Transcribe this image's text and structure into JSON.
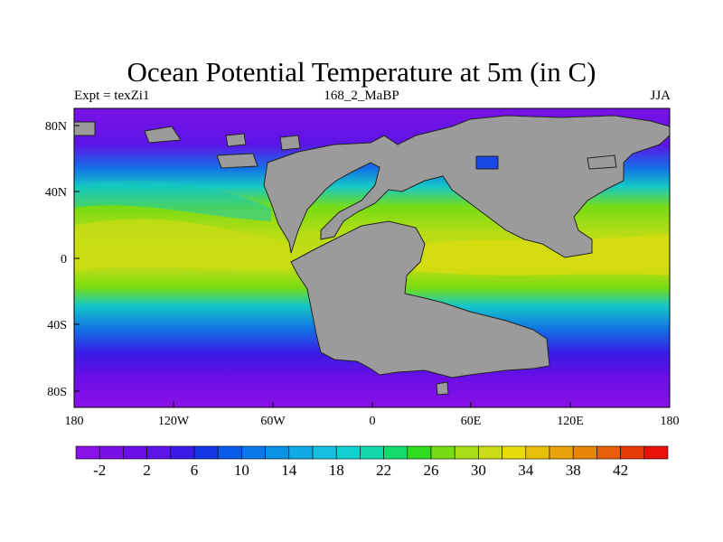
{
  "title": "Ocean Potential Temperature at 5m (in C)",
  "subtitle_left": "Expt = texZi1",
  "subtitle_center": "168_2_MaBP",
  "subtitle_right": "JJA",
  "lon_labels": [
    "180",
    "120W",
    "60W",
    "0",
    "60E",
    "120E",
    "180"
  ],
  "lat_labels": [
    "80N",
    "40N",
    "0",
    "40S",
    "80S"
  ],
  "colorbar": {
    "labels": [
      "-2",
      "2",
      "6",
      "10",
      "14",
      "18",
      "22",
      "26",
      "30",
      "34",
      "38",
      "42"
    ],
    "colors": [
      "#8a12e6",
      "#7a10e6",
      "#6a0ee6",
      "#5d14e6",
      "#3a1ae6",
      "#1438e6",
      "#0a5ae8",
      "#0a78e8",
      "#0a92e6",
      "#10aae6",
      "#14bfe0",
      "#10d0d0",
      "#10d8a8",
      "#14dc6c",
      "#30dc20",
      "#78dc14",
      "#a8dc14",
      "#ccdc14",
      "#e8dc0a",
      "#e8c00a",
      "#e8a40a",
      "#e88408",
      "#e85e08",
      "#e83a08",
      "#e81008"
    ]
  },
  "land_color": "#9b9b9b"
}
